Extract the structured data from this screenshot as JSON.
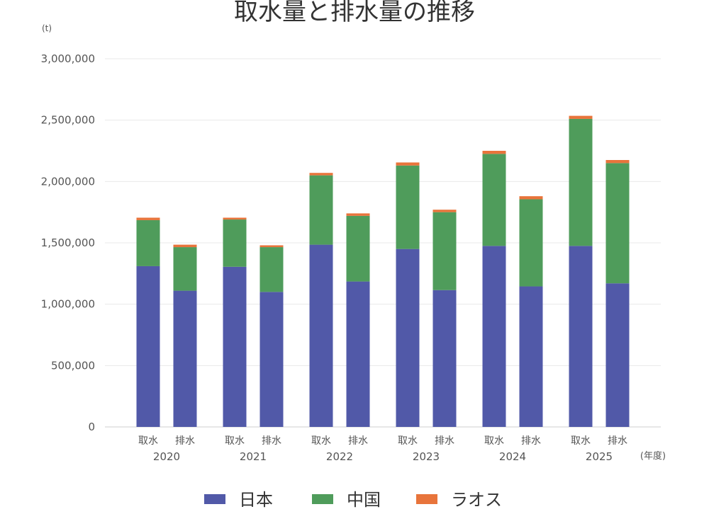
{
  "chart_data": {
    "type": "bar",
    "stacked": true,
    "title": "取水量と排水量の推移",
    "y_unit": "(t)",
    "x_unit": "(年度)",
    "ylim": [
      0,
      3000000
    ],
    "yticks": [
      0,
      500000,
      1000000,
      1500000,
      2000000,
      2500000,
      3000000
    ],
    "ytick_labels": [
      "0",
      "500,000",
      "1,000,000",
      "1,500,000",
      "2,000,000",
      "2,500,000",
      "3,000,000"
    ],
    "grid": true,
    "legend_position": "bottom",
    "groups": [
      "2020",
      "2021",
      "2022",
      "2023",
      "2024",
      "2025"
    ],
    "bar_types": [
      "取水",
      "排水"
    ],
    "categories": [
      "2020 取水",
      "2020 排水",
      "2021 取水",
      "2021 排水",
      "2022 取水",
      "2022 排水",
      "2023 取水",
      "2023 排水",
      "2024 取水",
      "2024 排水",
      "2025 取水",
      "2025 排水"
    ],
    "series": [
      {
        "name": "日本",
        "color": "#5159a8",
        "values": [
          1310000,
          1110000,
          1305000,
          1100000,
          1485000,
          1185000,
          1450000,
          1115000,
          1475000,
          1145000,
          1475000,
          1170000
        ]
      },
      {
        "name": "中国",
        "color": "#4f9c5b",
        "values": [
          375000,
          355000,
          385000,
          365000,
          565000,
          535000,
          680000,
          635000,
          750000,
          710000,
          1035000,
          980000
        ]
      },
      {
        "name": "ラオス",
        "color": "#e8743b",
        "values": [
          20000,
          20000,
          15000,
          15000,
          20000,
          20000,
          25000,
          20000,
          25000,
          25000,
          25000,
          25000
        ]
      }
    ]
  }
}
